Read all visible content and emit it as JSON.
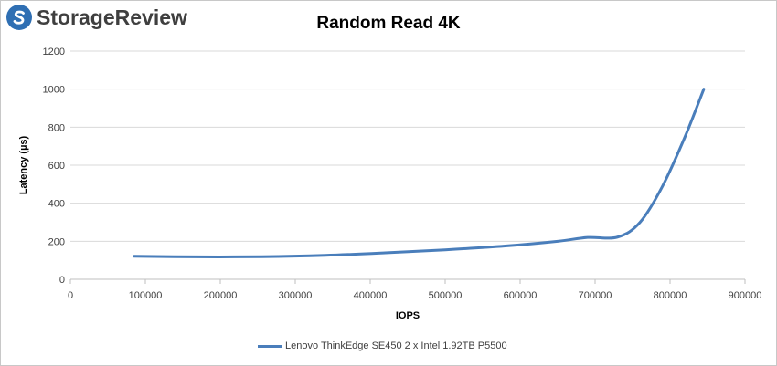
{
  "logo": {
    "text": "StorageReview"
  },
  "chart_data": {
    "type": "line",
    "title": "Random Read 4K",
    "xlabel": "IOPS",
    "ylabel": "Latency (µs)",
    "xlim": [
      0,
      900000
    ],
    "ylim": [
      0,
      1200
    ],
    "x_ticks": [
      0,
      100000,
      200000,
      300000,
      400000,
      500000,
      600000,
      700000,
      800000,
      900000
    ],
    "y_ticks": [
      0,
      200,
      400,
      600,
      800,
      1000,
      1200
    ],
    "grid": "horizontal",
    "legend_position": "bottom",
    "series": [
      {
        "name": "Lenovo ThinkEdge SE450 2 x Intel 1.92TB P5500",
        "color": "#4a7ebb",
        "x": [
          85000,
          170000,
          255000,
          340000,
          420000,
          500000,
          580000,
          650000,
          690000,
          730000,
          760000,
          790000,
          820000,
          845000
        ],
        "y": [
          121,
          118,
          119,
          126,
          139,
          155,
          175,
          200,
          220,
          222,
          300,
          490,
          750,
          1000
        ]
      }
    ]
  }
}
